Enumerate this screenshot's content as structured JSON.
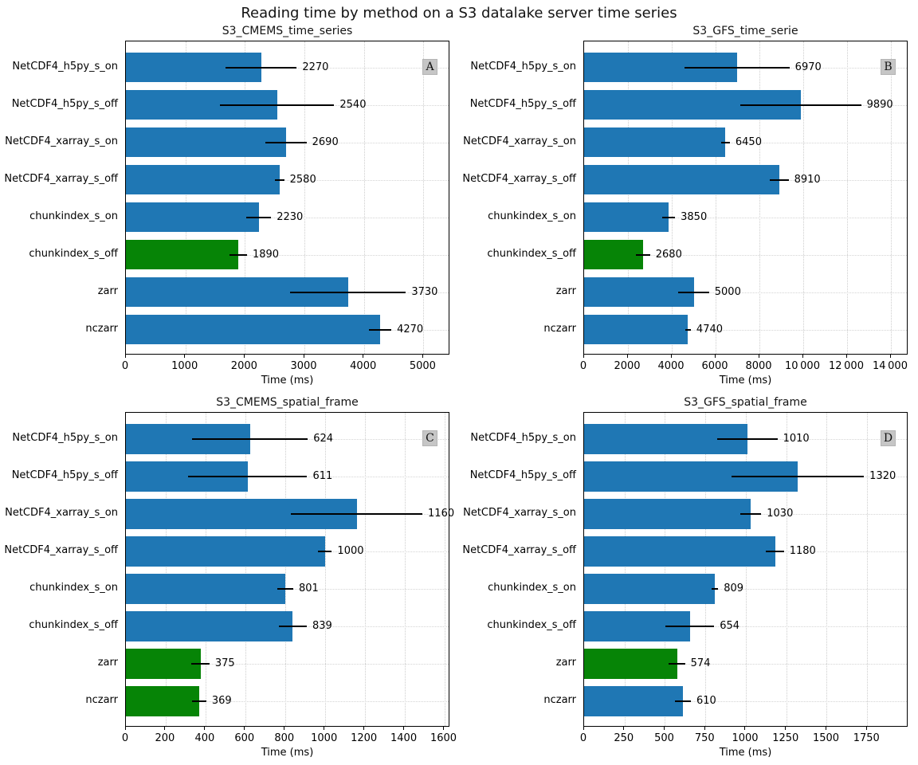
{
  "figure_title": "Reading time by method on a S3 datalake server time series",
  "colors": {
    "blue": "#1f77b4",
    "green": "#068406",
    "badge_bg": "#c6c6c6",
    "grid": "#cdcdcd"
  },
  "chart_data": {
    "type": "bar",
    "orientation": "horizontal",
    "grid": "dotted",
    "legend": "none",
    "xlabel": "Time (ms)",
    "categories": [
      "NetCDF4_h5py_s_on",
      "NetCDF4_h5py_s_off",
      "NetCDF4_xarray_s_on",
      "NetCDF4_xarray_s_off",
      "chunkindex_s_on",
      "chunkindex_s_off",
      "zarr",
      "nczarr"
    ],
    "panels": [
      {
        "badge": "A",
        "title": "S3_CMEMS_time_series",
        "xlim": [
          0,
          5450
        ],
        "tick_values": [
          0,
          1000,
          2000,
          3000,
          4000,
          5000
        ],
        "tick_labels": [
          "0",
          "1000",
          "2000",
          "3000",
          "4000",
          "5000"
        ],
        "bars": [
          {
            "category": "NetCDF4_h5py_s_on",
            "value": 2270,
            "err": 600,
            "label": "2270",
            "color": "blue"
          },
          {
            "category": "NetCDF4_h5py_s_off",
            "value": 2540,
            "err": 960,
            "label": "2540",
            "color": "blue"
          },
          {
            "category": "NetCDF4_xarray_s_on",
            "value": 2690,
            "err": 345,
            "label": "2690",
            "color": "blue"
          },
          {
            "category": "NetCDF4_xarray_s_off",
            "value": 2580,
            "err": 80,
            "label": "2580",
            "color": "blue"
          },
          {
            "category": "chunkindex_s_on",
            "value": 2230,
            "err": 210,
            "label": "2230",
            "color": "blue"
          },
          {
            "category": "chunkindex_s_off",
            "value": 1890,
            "err": 145,
            "label": "1890",
            "color": "green"
          },
          {
            "category": "zarr",
            "value": 3730,
            "err": 975,
            "label": "3730",
            "color": "blue"
          },
          {
            "category": "nczarr",
            "value": 4270,
            "err": 190,
            "label": "4270",
            "color": "blue"
          }
        ]
      },
      {
        "badge": "B",
        "title": "S3_GFS_time_serie",
        "xlim": [
          0,
          14800
        ],
        "tick_values": [
          0,
          2000,
          4000,
          6000,
          8000,
          10000,
          12000,
          14000
        ],
        "tick_labels": [
          "0",
          "2000",
          "4000",
          "6000",
          "8000",
          "10 000",
          "12 000",
          "14 000"
        ],
        "bars": [
          {
            "category": "NetCDF4_h5py_s_on",
            "value": 6970,
            "err": 2400,
            "label": "6970",
            "color": "blue"
          },
          {
            "category": "NetCDF4_h5py_s_off",
            "value": 9890,
            "err": 2750,
            "label": "9890",
            "color": "blue"
          },
          {
            "category": "NetCDF4_xarray_s_on",
            "value": 6450,
            "err": 200,
            "label": "6450",
            "color": "blue"
          },
          {
            "category": "NetCDF4_xarray_s_off",
            "value": 8910,
            "err": 420,
            "label": "8910",
            "color": "blue"
          },
          {
            "category": "chunkindex_s_on",
            "value": 3850,
            "err": 300,
            "label": "3850",
            "color": "blue"
          },
          {
            "category": "chunkindex_s_off",
            "value": 2680,
            "err": 330,
            "label": "2680",
            "color": "green"
          },
          {
            "category": "zarr",
            "value": 5000,
            "err": 700,
            "label": "5000",
            "color": "blue"
          },
          {
            "category": "nczarr",
            "value": 4740,
            "err": 130,
            "label": "4740",
            "color": "blue"
          }
        ]
      },
      {
        "badge": "C",
        "title": "S3_CMEMS_spatial_frame",
        "xlim": [
          0,
          1630
        ],
        "tick_values": [
          0,
          200,
          400,
          600,
          800,
          1000,
          1200,
          1400,
          1600
        ],
        "tick_labels": [
          "0",
          "200",
          "400",
          "600",
          "800",
          "1000",
          "1200",
          "1400",
          "1600"
        ],
        "bars": [
          {
            "category": "NetCDF4_h5py_s_on",
            "value": 624,
            "err": 290,
            "label": "624",
            "color": "blue"
          },
          {
            "category": "NetCDF4_h5py_s_off",
            "value": 611,
            "err": 300,
            "label": "611",
            "color": "blue"
          },
          {
            "category": "NetCDF4_xarray_s_on",
            "value": 1160,
            "err": 330,
            "label": "1160",
            "color": "blue"
          },
          {
            "category": "NetCDF4_xarray_s_off",
            "value": 1000,
            "err": 35,
            "label": "1000",
            "color": "blue"
          },
          {
            "category": "chunkindex_s_on",
            "value": 801,
            "err": 40,
            "label": "801",
            "color": "blue"
          },
          {
            "category": "chunkindex_s_off",
            "value": 839,
            "err": 70,
            "label": "839",
            "color": "blue"
          },
          {
            "category": "zarr",
            "value": 375,
            "err": 45,
            "label": "375",
            "color": "green"
          },
          {
            "category": "nczarr",
            "value": 369,
            "err": 35,
            "label": "369",
            "color": "green"
          }
        ]
      },
      {
        "badge": "D",
        "title": "S3_GFS_spatial_frame",
        "xlim": [
          0,
          2005
        ],
        "tick_values": [
          0,
          250,
          500,
          750,
          1000,
          1250,
          1500,
          1750
        ],
        "tick_labels": [
          "0",
          "250",
          "500",
          "750",
          "1000",
          "1250",
          "1500",
          "1750"
        ],
        "bars": [
          {
            "category": "NetCDF4_h5py_s_on",
            "value": 1010,
            "err": 185,
            "label": "1010",
            "color": "blue"
          },
          {
            "category": "NetCDF4_h5py_s_off",
            "value": 1320,
            "err": 410,
            "label": "1320",
            "color": "blue"
          },
          {
            "category": "NetCDF4_xarray_s_on",
            "value": 1030,
            "err": 65,
            "label": "1030",
            "color": "blue"
          },
          {
            "category": "NetCDF4_xarray_s_off",
            "value": 1180,
            "err": 55,
            "label": "1180",
            "color": "blue"
          },
          {
            "category": "chunkindex_s_on",
            "value": 809,
            "err": 20,
            "label": "809",
            "color": "blue"
          },
          {
            "category": "chunkindex_s_off",
            "value": 654,
            "err": 150,
            "label": "654",
            "color": "blue"
          },
          {
            "category": "zarr",
            "value": 574,
            "err": 50,
            "label": "574",
            "color": "green"
          },
          {
            "category": "nczarr",
            "value": 610,
            "err": 50,
            "label": "610",
            "color": "blue"
          }
        ]
      }
    ]
  }
}
